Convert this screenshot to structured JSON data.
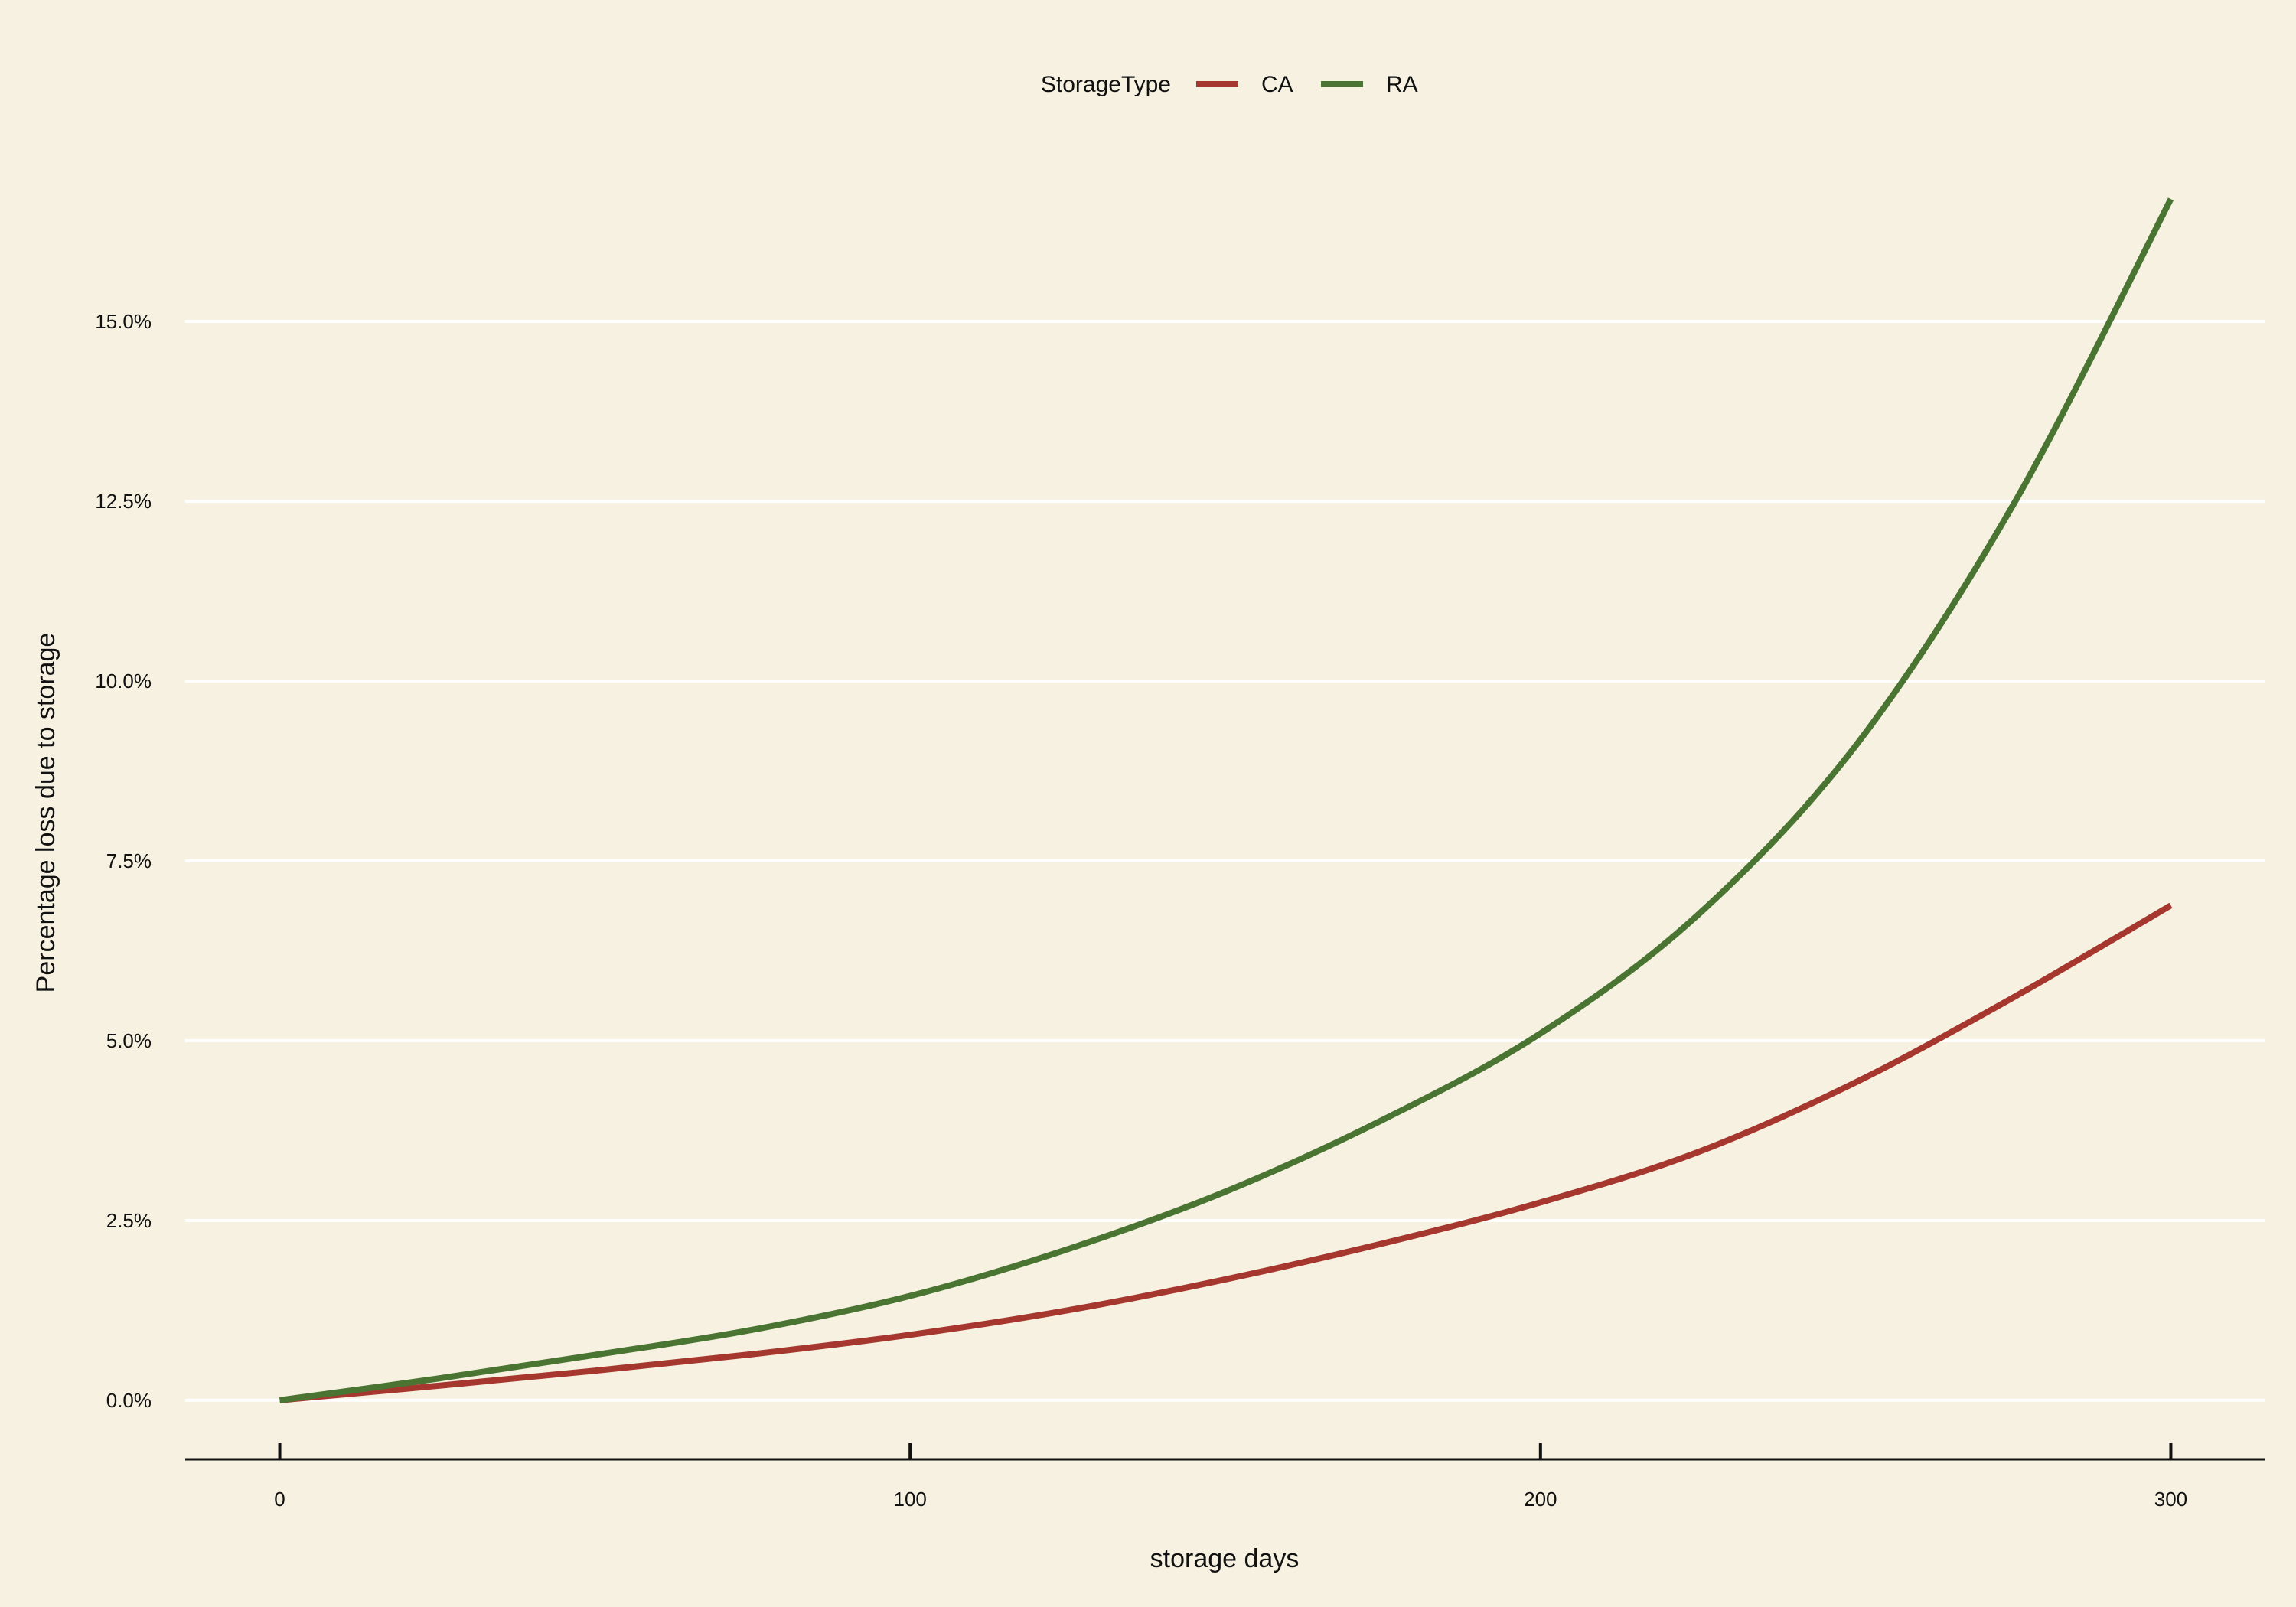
{
  "chart_data": {
    "type": "line",
    "title": "",
    "xlabel": "storage days",
    "ylabel": "Percentage loss due to storage",
    "xlim": [
      -15,
      315
    ],
    "ylim": [
      -0.8,
      17.5
    ],
    "x_ticks": [
      0,
      100,
      200,
      300
    ],
    "x_tick_labels": [
      "0",
      "100",
      "200",
      "300"
    ],
    "y_ticks": [
      0,
      2.5,
      5,
      7.5,
      10,
      12.5,
      15
    ],
    "y_tick_labels": [
      "0.0%",
      "2.5%",
      "5.0%",
      "7.5%",
      "10.0%",
      "12.5%",
      "15.0%"
    ],
    "grid": "horizontal major lines",
    "background_color": "#f6f1e0",
    "grid_color": "#ffffff",
    "legend": {
      "title": "StorageType",
      "position": "top-center"
    },
    "x": [
      0,
      25,
      50,
      75,
      100,
      125,
      150,
      175,
      200,
      225,
      250,
      275,
      300
    ],
    "series": [
      {
        "name": "CA",
        "color": "#a6372f",
        "values": [
          0,
          0.2,
          0.41,
          0.64,
          0.91,
          1.25,
          1.68,
          2.18,
          2.75,
          3.45,
          4.42,
          5.6,
          6.88
        ]
      },
      {
        "name": "RA",
        "color": "#4a7431",
        "values": [
          0,
          0.3,
          0.63,
          0.98,
          1.45,
          2.1,
          2.9,
          3.9,
          5.1,
          6.75,
          9.1,
          12.45,
          16.7
        ]
      }
    ]
  }
}
